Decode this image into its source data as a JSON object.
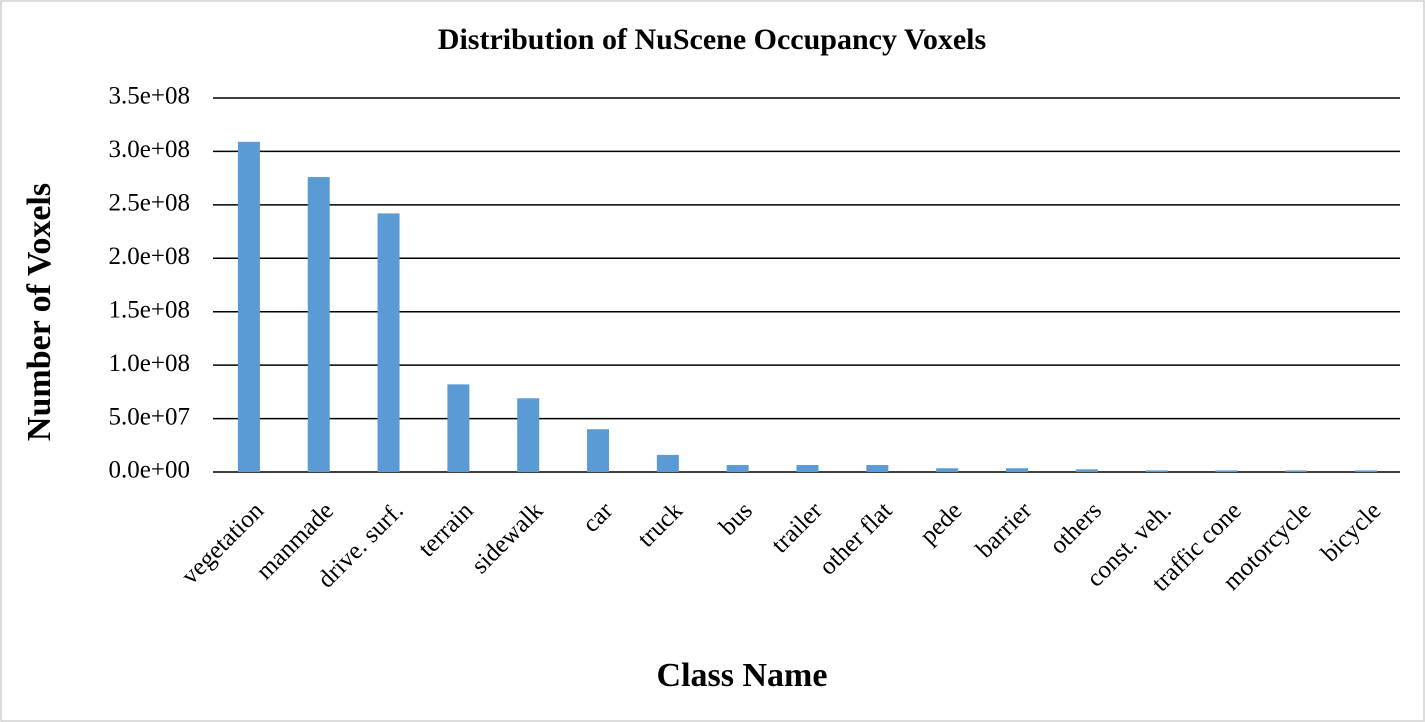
{
  "chart_data": {
    "type": "bar",
    "title": "Distribution of NuScene Occupancy Voxels",
    "x_label": "Class Name",
    "y_label": "Number of Voxels",
    "categories": [
      "vegetation",
      "manmade",
      "drive. surf.",
      "terrain",
      "sidewalk",
      "car",
      "truck",
      "bus",
      "trailer",
      "other flat",
      "pede",
      "barrier",
      "others",
      "const. veh.",
      "traffic cone",
      "motorcycle",
      "bicycle"
    ],
    "values": [
      309000000,
      276000000,
      242000000,
      82000000,
      69000000,
      40000000,
      16000000,
      6500000,
      6500000,
      6500000,
      3500000,
      3500000,
      2500000,
      1500000,
      1500000,
      1500000,
      1500000
    ],
    "color": "#5b9bd5",
    "ylim": [
      0,
      350000000
    ],
    "yticks": [
      {
        "value": 0,
        "label": "0.0e+00"
      },
      {
        "value": 50000000,
        "label": "5.0e+07"
      },
      {
        "value": 100000000,
        "label": "1.0e+08"
      },
      {
        "value": 150000000,
        "label": "1.5e+08"
      },
      {
        "value": 200000000,
        "label": "2.0e+08"
      },
      {
        "value": 250000000,
        "label": "2.5e+08"
      },
      {
        "value": 300000000,
        "label": "3.0e+08"
      },
      {
        "value": 350000000,
        "label": "3.5e+08"
      }
    ],
    "grid": true
  }
}
